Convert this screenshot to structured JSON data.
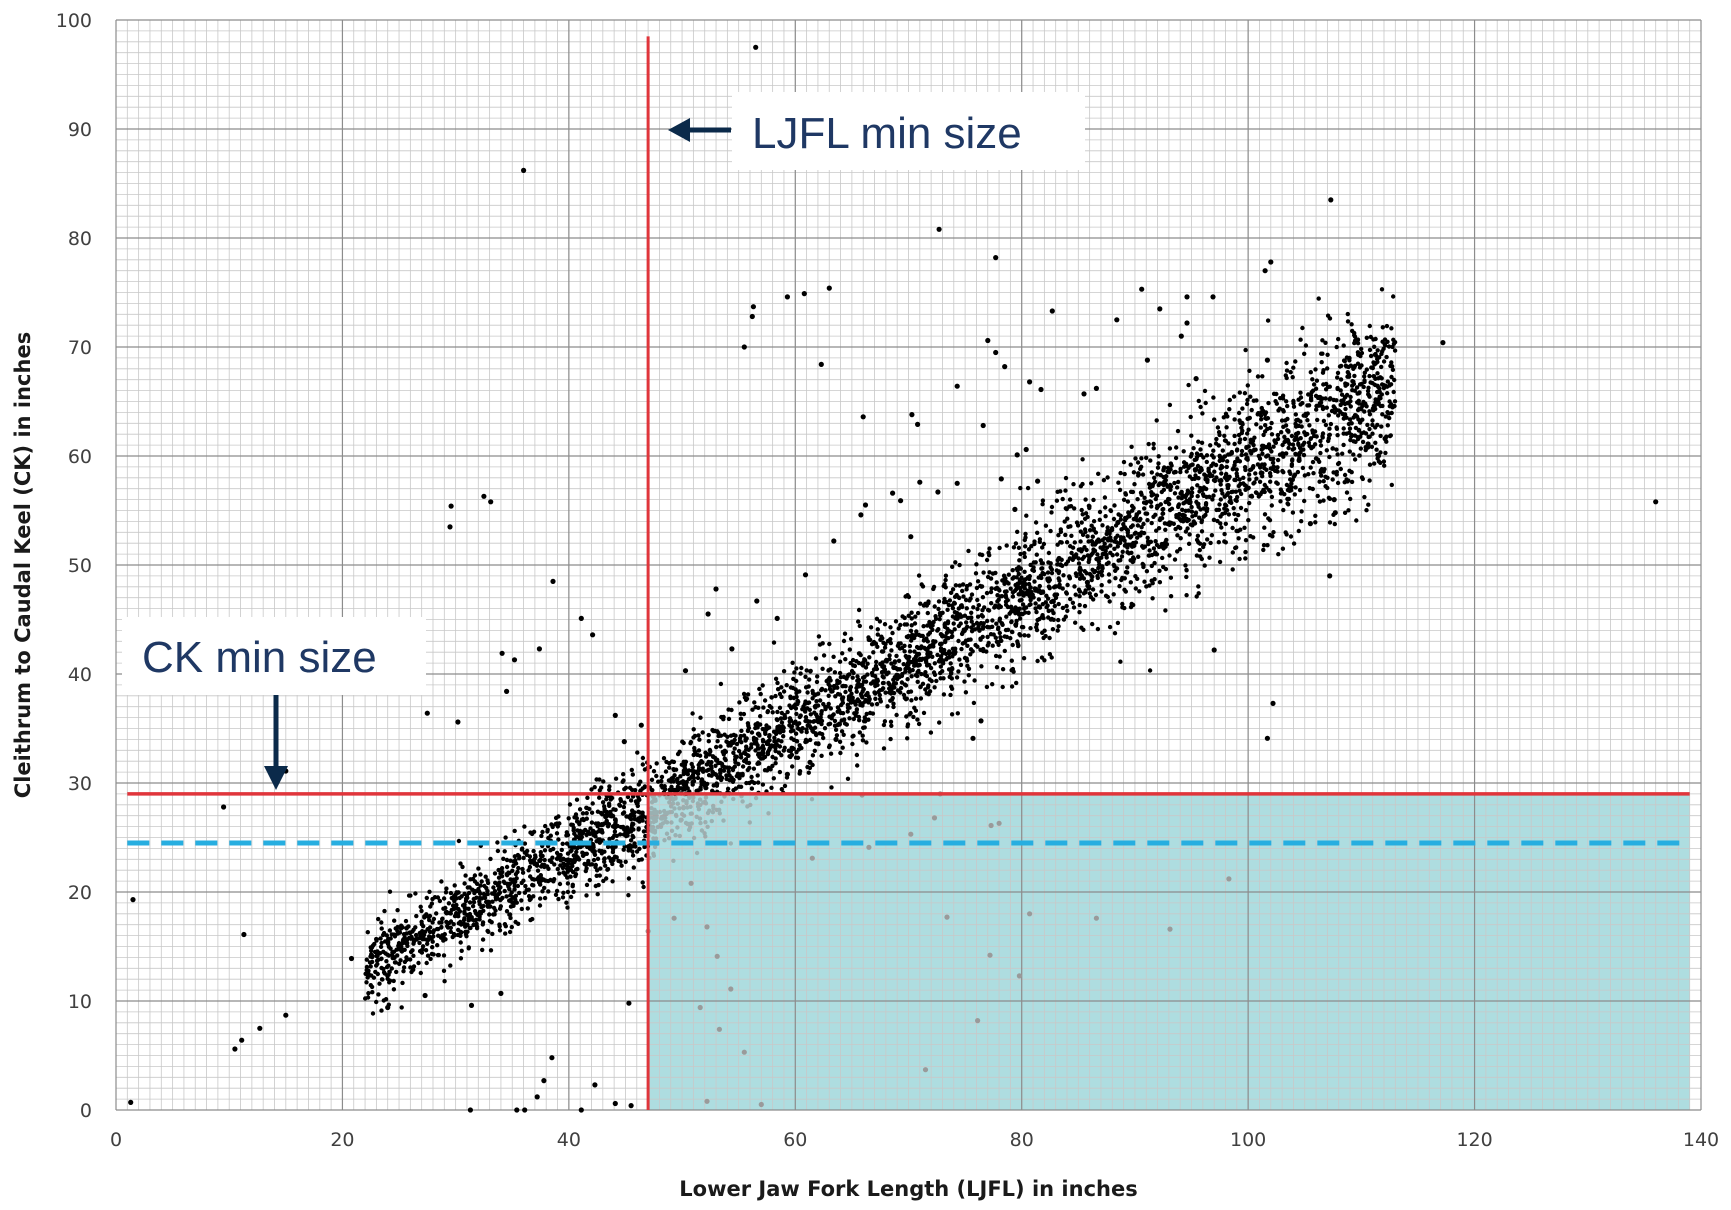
{
  "chart_data": {
    "type": "scatter",
    "title": "",
    "xlabel": "Lower Jaw Fork Length (LJFL) in inches",
    "ylabel": "Cleithrum to Caudal Keel (CK) in inches",
    "xlim": [
      0,
      140
    ],
    "ylim": [
      0,
      100
    ],
    "x_ticks": [
      "0",
      "20",
      "40",
      "60",
      "80",
      "100",
      "120",
      "140"
    ],
    "y_ticks": [
      "0",
      "10",
      "20",
      "30",
      "40",
      "50",
      "60",
      "70",
      "80",
      "90",
      "100"
    ],
    "grid": true,
    "legend": "none",
    "reference_lines": [
      {
        "orientation": "vertical",
        "x": 47,
        "y_range": [
          0,
          98.5
        ],
        "color": "#e0353b",
        "style": "solid"
      },
      {
        "orientation": "horizontal",
        "y": 29,
        "x_range": [
          1,
          139
        ],
        "color": "#e0353b",
        "style": "solid"
      },
      {
        "orientation": "horizontal",
        "y": 24.5,
        "x_range": [
          1,
          139
        ],
        "color": "#27aee0",
        "style": "dashed"
      }
    ],
    "shaded_region": {
      "x_range": [
        47,
        139
      ],
      "y_range": [
        0,
        29
      ],
      "color": "#aedde0"
    },
    "annotations": [
      {
        "text": "LJFL min size",
        "arrow": "left",
        "target": [
          47,
          90
        ]
      },
      {
        "text": "CK min size",
        "arrow": "down",
        "target": [
          14,
          29
        ]
      }
    ],
    "trend": {
      "x_range": [
        22,
        113
      ],
      "slope": 0.59,
      "intercept": 0,
      "spread": 1.8,
      "n": 4500
    },
    "series": [
      {
        "values": [
          [
            56.5,
            97.5
          ],
          [
            36,
            86.2
          ],
          [
            107.3,
            83.5
          ],
          [
            72.7,
            80.8
          ],
          [
            77.7,
            78.2
          ],
          [
            102,
            77.8
          ],
          [
            101.5,
            77
          ],
          [
            63,
            75.4
          ],
          [
            60.8,
            74.9
          ],
          [
            59.3,
            74.6
          ],
          [
            56.3,
            73.7
          ],
          [
            56.2,
            72.8
          ],
          [
            90.6,
            75.3
          ],
          [
            94.6,
            74.6
          ],
          [
            96.9,
            74.6
          ],
          [
            92.2,
            73.5
          ],
          [
            94.6,
            72.2
          ],
          [
            94.1,
            71
          ],
          [
            88.4,
            72.5
          ],
          [
            82.7,
            73.3
          ],
          [
            117.2,
            70.4
          ],
          [
            55.5,
            70
          ],
          [
            77,
            70.6
          ],
          [
            77.7,
            69.5
          ],
          [
            78.5,
            68.2
          ],
          [
            62.3,
            68.4
          ],
          [
            91.1,
            68.8
          ],
          [
            101.7,
            68.8
          ],
          [
            95.4,
            67.1
          ],
          [
            86.6,
            66.2
          ],
          [
            85.5,
            65.7
          ],
          [
            80.7,
            66.8
          ],
          [
            81.7,
            66.1
          ],
          [
            74.3,
            66.4
          ],
          [
            66,
            63.6
          ],
          [
            70.3,
            63.8
          ],
          [
            70.8,
            62.9
          ],
          [
            76.6,
            62.8
          ],
          [
            79.6,
            60.1
          ],
          [
            80.4,
            60.6
          ],
          [
            104.5,
            59.6
          ],
          [
            105.5,
            53.8
          ],
          [
            107.6,
            56
          ],
          [
            107.7,
            54.8
          ],
          [
            107.2,
            49
          ],
          [
            110.6,
            61.1
          ],
          [
            112.1,
            61.6
          ],
          [
            136,
            55.8
          ],
          [
            71,
            57.6
          ],
          [
            69.3,
            55.9
          ],
          [
            65.8,
            54.6
          ],
          [
            97,
            42.2
          ],
          [
            102.2,
            37.3
          ],
          [
            101.7,
            34.1
          ],
          [
            98.3,
            21.2
          ],
          [
            86.6,
            17.6
          ],
          [
            93.1,
            16.6
          ],
          [
            80.7,
            18
          ],
          [
            79.8,
            12.3
          ],
          [
            77.2,
            14.2
          ],
          [
            76.1,
            8.2
          ],
          [
            71.5,
            3.7
          ],
          [
            73.4,
            17.7
          ],
          [
            29.6,
            55.4
          ],
          [
            29.5,
            53.5
          ],
          [
            32.5,
            56.3
          ],
          [
            33.1,
            55.8
          ],
          [
            34.5,
            38.4
          ],
          [
            27.5,
            36.4
          ],
          [
            30.2,
            35.6
          ],
          [
            38.6,
            48.5
          ],
          [
            41.1,
            45.1
          ],
          [
            42.1,
            43.6
          ],
          [
            34.1,
            41.9
          ],
          [
            35.2,
            41.3
          ],
          [
            37.4,
            42.3
          ],
          [
            9.5,
            27.8
          ],
          [
            15,
            31.1
          ],
          [
            1.5,
            19.3
          ],
          [
            11.3,
            16.1
          ],
          [
            12.7,
            7.5
          ],
          [
            11.1,
            6.4
          ],
          [
            10.5,
            5.6
          ],
          [
            15,
            8.7
          ],
          [
            1.3,
            0.7
          ],
          [
            31.3,
            0
          ],
          [
            36.1,
            0
          ],
          [
            35.4,
            0
          ],
          [
            37.2,
            1.2
          ],
          [
            37.8,
            2.7
          ],
          [
            38.5,
            4.8
          ],
          [
            41.1,
            0
          ],
          [
            44.1,
            0.6
          ],
          [
            45.5,
            0.4
          ],
          [
            45.3,
            9.8
          ],
          [
            47,
            16.4
          ],
          [
            57,
            0.5
          ],
          [
            52.2,
            0.8
          ],
          [
            42.3,
            2.3
          ],
          [
            24,
            9.4
          ],
          [
            27.3,
            10.5
          ],
          [
            31.4,
            9.6
          ],
          [
            34,
            10.7
          ],
          [
            20.8,
            13.9
          ],
          [
            40.2,
            24.3
          ],
          [
            44.1,
            36.2
          ],
          [
            44.9,
            33.8
          ],
          [
            46.4,
            35.3
          ],
          [
            50.3,
            40.3
          ],
          [
            52.3,
            45.5
          ],
          [
            53,
            47.8
          ],
          [
            54.4,
            42.3
          ],
          [
            57.9,
            33.4
          ],
          [
            59.3,
            30.8
          ],
          [
            61.3,
            31.9
          ],
          [
            63.6,
            34
          ],
          [
            63.9,
            35.4
          ],
          [
            66.5,
            37.6
          ],
          [
            68.7,
            40.6
          ],
          [
            70.8,
            41.8
          ],
          [
            73,
            43.5
          ],
          [
            74.3,
            45.1
          ],
          [
            72.6,
            56.7
          ],
          [
            56.6,
            46.7
          ],
          [
            58.4,
            45.1
          ],
          [
            60.9,
            49.1
          ],
          [
            63.4,
            52.2
          ],
          [
            66.2,
            55.5
          ],
          [
            68.6,
            56.6
          ],
          [
            70.2,
            52.6
          ],
          [
            74.3,
            57.5
          ],
          [
            78.2,
            57.9
          ],
          [
            79.4,
            55.1
          ],
          [
            81.4,
            57.7
          ],
          [
            83.3,
            50.6
          ],
          [
            85.8,
            48.4
          ],
          [
            88.5,
            53.9
          ],
          [
            49.3,
            17.6
          ],
          [
            50.8,
            20.8
          ],
          [
            52.2,
            16.8
          ],
          [
            53.1,
            14.1
          ],
          [
            54.3,
            11.1
          ],
          [
            51.6,
            9.4
          ],
          [
            53.3,
            7.4
          ],
          [
            55.5,
            5.3
          ],
          [
            61.5,
            23.1
          ],
          [
            66.5,
            24.1
          ],
          [
            70.2,
            25.3
          ],
          [
            72.3,
            26.8
          ],
          [
            77.3,
            26.1
          ],
          [
            78,
            26.3
          ],
          [
            72.8,
            29
          ],
          [
            76.4,
            35.7
          ],
          [
            75.7,
            34.1
          ],
          [
            65.9,
            28.9
          ]
        ]
      }
    ]
  },
  "callouts": {
    "ljfl_label": "LJFL min size",
    "ck_label": "CK min size"
  },
  "colors": {
    "reference_red": "#e0353b",
    "reference_blue": "#27aee0",
    "shade": "#aedde0",
    "points": "#000000",
    "grid_minor": "#c8c8c8",
    "grid_major": "#8c8c8c",
    "callout_text": "#1f3864",
    "callout_arrow": "#0b2a4a"
  }
}
